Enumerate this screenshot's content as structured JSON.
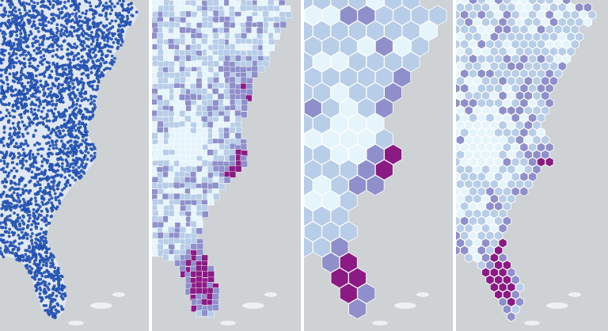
{
  "figure": {
    "panels": [
      {
        "id": "points",
        "style": "point-locations",
        "description_label": ""
      },
      {
        "id": "counties",
        "style": "choropleth-polygons",
        "description_label": ""
      },
      {
        "id": "hex-large",
        "style": "hexbin-large",
        "description_label": ""
      },
      {
        "id": "hex-small",
        "style": "hexbin-small",
        "description_label": ""
      }
    ]
  },
  "colors": {
    "ocean": "#cfd2d4",
    "land_base": "#eef1f3",
    "point_fill": "#2f62c8",
    "point_stroke": "#0b2f7a",
    "class_1": "#e6f5fb",
    "class_2": "#b7cde8",
    "class_3": "#8e8fcb",
    "class_4": "#8c1a85"
  },
  "legend": []
}
